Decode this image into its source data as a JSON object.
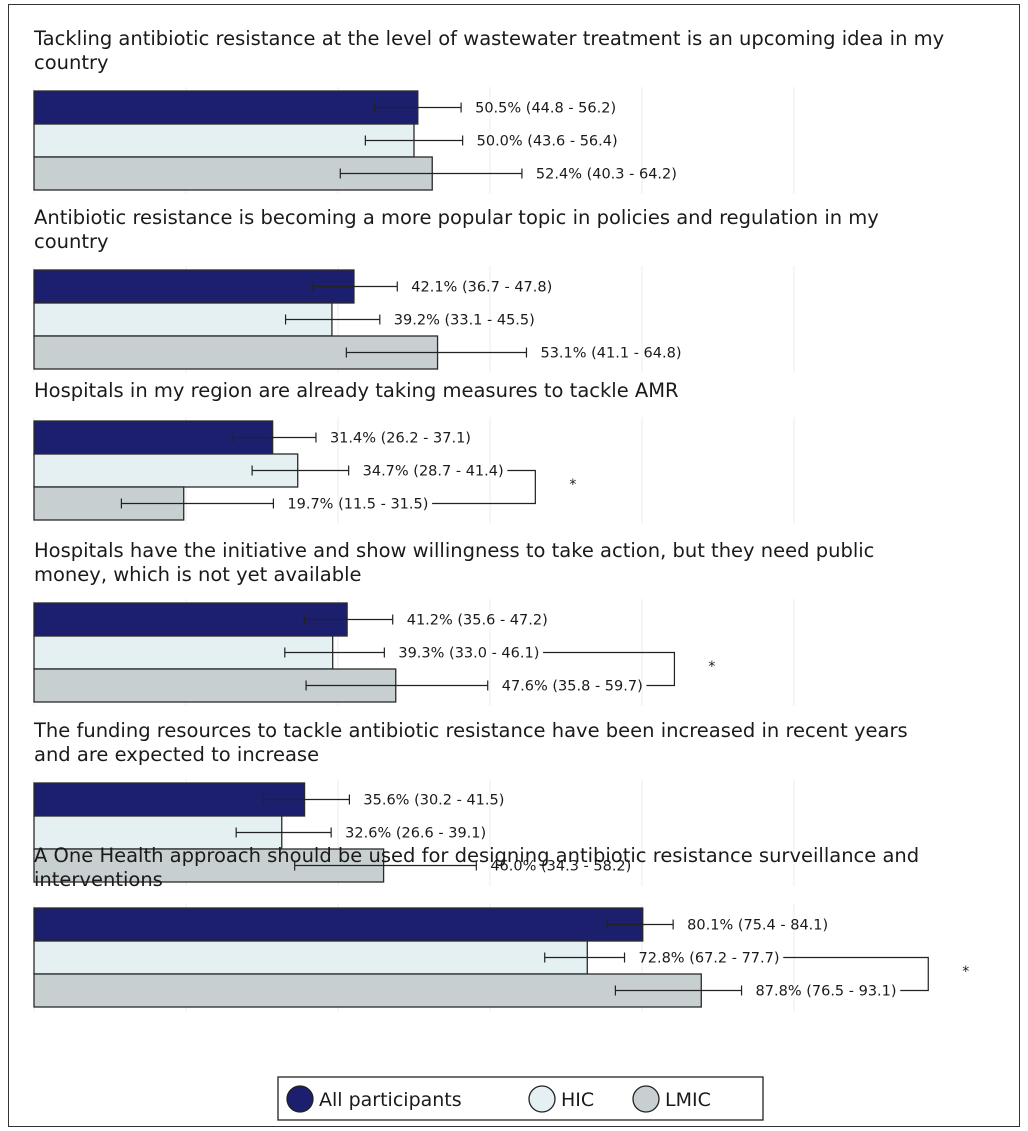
{
  "chart_data": {
    "type": "bar",
    "orientation": "horizontal",
    "xlim": [
      0,
      100
    ],
    "grid": true,
    "legend": {
      "placement": "bottom",
      "entries": [
        {
          "name": "All participants",
          "color": "#1b1f6e"
        },
        {
          "name": "HIC",
          "color": "#e4f0f2"
        },
        {
          "name": "LMIC",
          "color": "#c7cfd0"
        }
      ]
    },
    "colors": {
      "All participants": "#1b1f6e",
      "HIC": "#e4f0f2",
      "LMIC": "#c7cfd0",
      "edge": "#2a2a2a"
    },
    "groups": [
      {
        "title_lines": [
          "Tackling antibiotic resistance at the level of wastewater treatment is an upcoming idea in my",
          "country"
        ],
        "bars": [
          {
            "series": "All participants",
            "value": 50.5,
            "low": 44.8,
            "high": 56.2,
            "label": "50.5% (44.8 - 56.2)"
          },
          {
            "series": "HIC",
            "value": 50.0,
            "low": 43.6,
            "high": 56.4,
            "label": "50.0% (43.6 - 56.4)"
          },
          {
            "series": "LMIC",
            "value": 52.4,
            "low": 40.3,
            "high": 64.2,
            "label": "52.4% (40.3 - 64.2)"
          }
        ],
        "significance": ""
      },
      {
        "title_lines": [
          "Antibiotic resistance is becoming a more popular topic in policies and regulation in my",
          "country"
        ],
        "bars": [
          {
            "series": "All participants",
            "value": 42.1,
            "low": 36.7,
            "high": 47.8,
            "label": "42.1% (36.7 - 47.8)"
          },
          {
            "series": "HIC",
            "value": 39.2,
            "low": 33.1,
            "high": 45.5,
            "label": "39.2% (33.1 - 45.5)"
          },
          {
            "series": "LMIC",
            "value": 53.1,
            "low": 41.1,
            "high": 64.8,
            "label": "53.1% (41.1 - 64.8)"
          }
        ],
        "significance": ""
      },
      {
        "title_lines": [
          "Hospitals in my region are already taking measures to tackle AMR"
        ],
        "bars": [
          {
            "series": "All participants",
            "value": 31.4,
            "low": 26.2,
            "high": 37.1,
            "label": "31.4% (26.2 - 37.1)"
          },
          {
            "series": "HIC",
            "value": 34.7,
            "low": 28.7,
            "high": 41.4,
            "label": "34.7% (28.7 - 41.4)"
          },
          {
            "series": "LMIC",
            "value": 19.7,
            "low": 11.5,
            "high": 31.5,
            "label": "19.7% (11.5 - 31.5)"
          }
        ],
        "significance": "*"
      },
      {
        "title_lines": [
          "Hospitals have the initiative and show willingness to take action, but they need public",
          "money, which is not yet available"
        ],
        "bars": [
          {
            "series": "All participants",
            "value": 41.2,
            "low": 35.6,
            "high": 47.2,
            "label": "41.2% (35.6 - 47.2)"
          },
          {
            "series": "HIC",
            "value": 39.3,
            "low": 33.0,
            "high": 46.1,
            "label": "39.3% (33.0 - 46.1)"
          },
          {
            "series": "LMIC",
            "value": 47.6,
            "low": 35.8,
            "high": 59.7,
            "label": "47.6% (35.8 - 59.7)"
          }
        ],
        "significance": "*"
      },
      {
        "title_lines": [
          "The funding resources to tackle antibiotic resistance have been increased in recent years",
          "and are expected to increase"
        ],
        "bars": [
          {
            "series": "All participants",
            "value": 35.6,
            "low": 30.2,
            "high": 41.5,
            "label": "35.6% (30.2 - 41.5)"
          },
          {
            "series": "HIC",
            "value": 32.6,
            "low": 26.6,
            "high": 39.1,
            "label": "32.6% (26.6 - 39.1)"
          },
          {
            "series": "LMIC",
            "value": 46.0,
            "low": 34.3,
            "high": 58.2,
            "label": "46.0% (34.3 - 58.2)"
          }
        ],
        "significance": ""
      },
      {
        "title_lines": [
          "A One Health approach should be used for designing antibiotic resistance surveillance and",
          "interventions"
        ],
        "bars": [
          {
            "series": "All participants",
            "value": 80.1,
            "low": 75.4,
            "high": 84.1,
            "label": "80.1% (75.4 - 84.1)"
          },
          {
            "series": "HIC",
            "value": 72.8,
            "low": 67.2,
            "high": 77.7,
            "label": "72.8% (67.2 - 77.7)"
          },
          {
            "series": "LMIC",
            "value": 87.8,
            "low": 76.5,
            "high": 93.1,
            "label": "87.8% (76.5 - 93.1)"
          }
        ],
        "significance": "*"
      }
    ]
  }
}
